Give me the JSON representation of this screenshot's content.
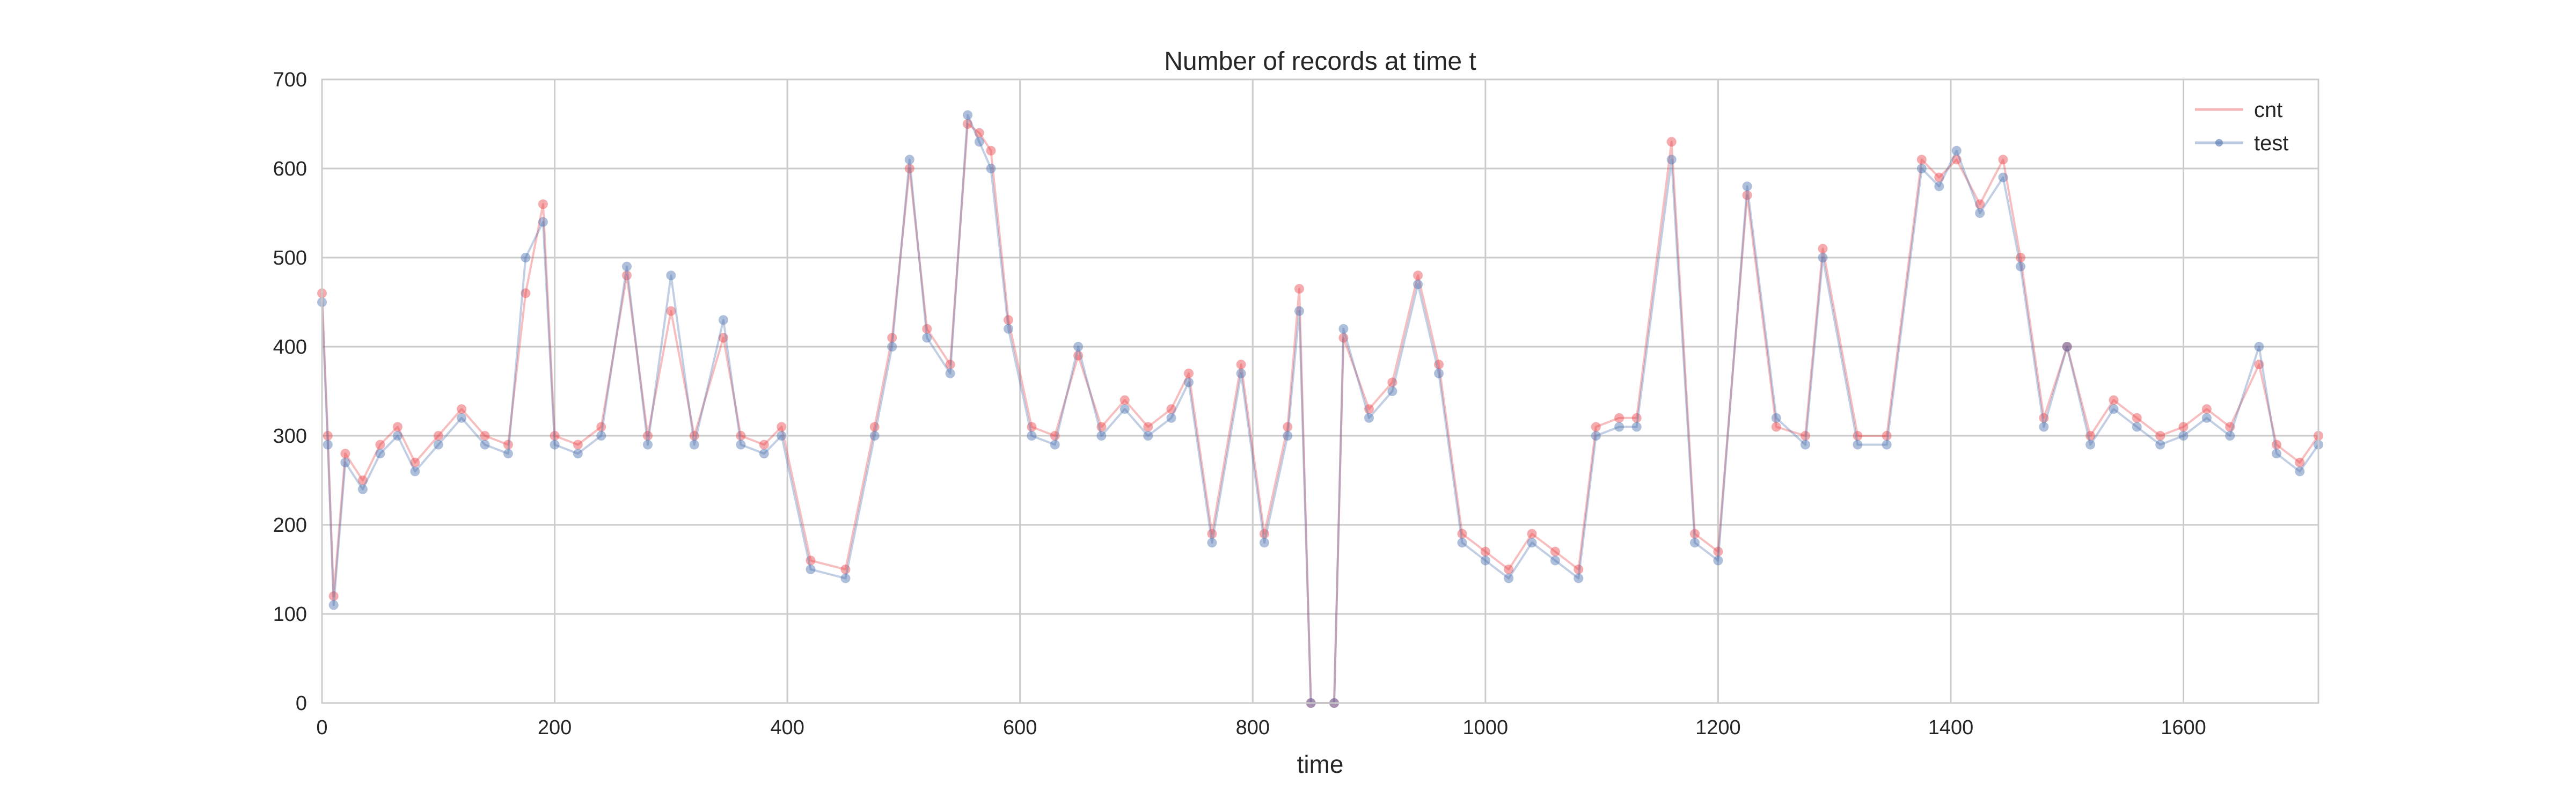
{
  "chart_data": {
    "type": "line",
    "title": "Number of records at time t",
    "xlabel": "time",
    "ylabel": "",
    "xlim": [
      0,
      1716
    ],
    "ylim": [
      0,
      700
    ],
    "xticks": [
      0,
      200,
      400,
      600,
      800,
      1000,
      1200,
      1400,
      1600
    ],
    "yticks": [
      0,
      100,
      200,
      300,
      400,
      500,
      600,
      700
    ],
    "grid": true,
    "legend_position": "top-right",
    "series": [
      {
        "name": "cnt",
        "color": "#e8454a",
        "marker": "circle",
        "points": [
          [
            0,
            460
          ],
          [
            5,
            300
          ],
          [
            10,
            120
          ],
          [
            20,
            280
          ],
          [
            35,
            250
          ],
          [
            50,
            290
          ],
          [
            65,
            310
          ],
          [
            80,
            270
          ],
          [
            100,
            300
          ],
          [
            120,
            330
          ],
          [
            140,
            300
          ],
          [
            160,
            290
          ],
          [
            175,
            460
          ],
          [
            190,
            560
          ],
          [
            200,
            300
          ],
          [
            220,
            290
          ],
          [
            240,
            310
          ],
          [
            262,
            480
          ],
          [
            280,
            300
          ],
          [
            300,
            440
          ],
          [
            320,
            300
          ],
          [
            345,
            410
          ],
          [
            360,
            300
          ],
          [
            380,
            290
          ],
          [
            395,
            310
          ],
          [
            420,
            160
          ],
          [
            450,
            150
          ],
          [
            475,
            310
          ],
          [
            490,
            410
          ],
          [
            505,
            600
          ],
          [
            520,
            420
          ],
          [
            540,
            380
          ],
          [
            555,
            650
          ],
          [
            565,
            640
          ],
          [
            575,
            620
          ],
          [
            590,
            430
          ],
          [
            610,
            310
          ],
          [
            630,
            300
          ],
          [
            650,
            390
          ],
          [
            670,
            310
          ],
          [
            690,
            340
          ],
          [
            710,
            310
          ],
          [
            730,
            330
          ],
          [
            745,
            370
          ],
          [
            765,
            190
          ],
          [
            790,
            380
          ],
          [
            810,
            190
          ],
          [
            830,
            310
          ],
          [
            840,
            465
          ],
          [
            850,
            0
          ],
          [
            870,
            0
          ],
          [
            878,
            410
          ],
          [
            900,
            330
          ],
          [
            920,
            360
          ],
          [
            942,
            480
          ],
          [
            960,
            380
          ],
          [
            980,
            190
          ],
          [
            1000,
            170
          ],
          [
            1020,
            150
          ],
          [
            1040,
            190
          ],
          [
            1060,
            170
          ],
          [
            1080,
            150
          ],
          [
            1095,
            310
          ],
          [
            1115,
            320
          ],
          [
            1130,
            320
          ],
          [
            1160,
            630
          ],
          [
            1180,
            190
          ],
          [
            1200,
            170
          ],
          [
            1225,
            570
          ],
          [
            1250,
            310
          ],
          [
            1275,
            300
          ],
          [
            1290,
            510
          ],
          [
            1320,
            300
          ],
          [
            1345,
            300
          ],
          [
            1375,
            610
          ],
          [
            1390,
            590
          ],
          [
            1405,
            610
          ],
          [
            1425,
            560
          ],
          [
            1445,
            610
          ],
          [
            1460,
            500
          ],
          [
            1480,
            320
          ],
          [
            1500,
            400
          ],
          [
            1520,
            300
          ],
          [
            1540,
            340
          ],
          [
            1560,
            320
          ],
          [
            1580,
            300
          ],
          [
            1600,
            310
          ],
          [
            1620,
            330
          ],
          [
            1640,
            310
          ],
          [
            1665,
            380
          ],
          [
            1680,
            290
          ],
          [
            1700,
            270
          ],
          [
            1716,
            300
          ]
        ]
      },
      {
        "name": "test",
        "color": "#4c72b0",
        "marker": "circle",
        "points": [
          [
            0,
            450
          ],
          [
            5,
            290
          ],
          [
            10,
            110
          ],
          [
            20,
            270
          ],
          [
            35,
            240
          ],
          [
            50,
            280
          ],
          [
            65,
            300
          ],
          [
            80,
            260
          ],
          [
            100,
            290
          ],
          [
            120,
            320
          ],
          [
            140,
            290
          ],
          [
            160,
            280
          ],
          [
            175,
            500
          ],
          [
            190,
            540
          ],
          [
            200,
            290
          ],
          [
            220,
            280
          ],
          [
            240,
            300
          ],
          [
            262,
            490
          ],
          [
            280,
            290
          ],
          [
            300,
            480
          ],
          [
            320,
            290
          ],
          [
            345,
            430
          ],
          [
            360,
            290
          ],
          [
            380,
            280
          ],
          [
            395,
            300
          ],
          [
            420,
            150
          ],
          [
            450,
            140
          ],
          [
            475,
            300
          ],
          [
            490,
            400
          ],
          [
            505,
            610
          ],
          [
            520,
            410
          ],
          [
            540,
            370
          ],
          [
            555,
            660
          ],
          [
            565,
            630
          ],
          [
            575,
            600
          ],
          [
            590,
            420
          ],
          [
            610,
            300
          ],
          [
            630,
            290
          ],
          [
            650,
            400
          ],
          [
            670,
            300
          ],
          [
            690,
            330
          ],
          [
            710,
            300
          ],
          [
            730,
            320
          ],
          [
            745,
            360
          ],
          [
            765,
            180
          ],
          [
            790,
            370
          ],
          [
            810,
            180
          ],
          [
            830,
            300
          ],
          [
            840,
            440
          ],
          [
            850,
            0
          ],
          [
            870,
            0
          ],
          [
            878,
            420
          ],
          [
            900,
            320
          ],
          [
            920,
            350
          ],
          [
            942,
            470
          ],
          [
            960,
            370
          ],
          [
            980,
            180
          ],
          [
            1000,
            160
          ],
          [
            1020,
            140
          ],
          [
            1040,
            180
          ],
          [
            1060,
            160
          ],
          [
            1080,
            140
          ],
          [
            1095,
            300
          ],
          [
            1115,
            310
          ],
          [
            1130,
            310
          ],
          [
            1160,
            610
          ],
          [
            1180,
            180
          ],
          [
            1200,
            160
          ],
          [
            1225,
            580
          ],
          [
            1250,
            320
          ],
          [
            1275,
            290
          ],
          [
            1290,
            500
          ],
          [
            1320,
            290
          ],
          [
            1345,
            290
          ],
          [
            1375,
            600
          ],
          [
            1390,
            580
          ],
          [
            1405,
            620
          ],
          [
            1425,
            550
          ],
          [
            1445,
            590
          ],
          [
            1460,
            490
          ],
          [
            1480,
            310
          ],
          [
            1500,
            400
          ],
          [
            1520,
            290
          ],
          [
            1540,
            330
          ],
          [
            1560,
            310
          ],
          [
            1580,
            290
          ],
          [
            1600,
            300
          ],
          [
            1620,
            320
          ],
          [
            1640,
            300
          ],
          [
            1665,
            400
          ],
          [
            1680,
            280
          ],
          [
            1700,
            260
          ],
          [
            1716,
            290
          ]
        ]
      }
    ]
  }
}
